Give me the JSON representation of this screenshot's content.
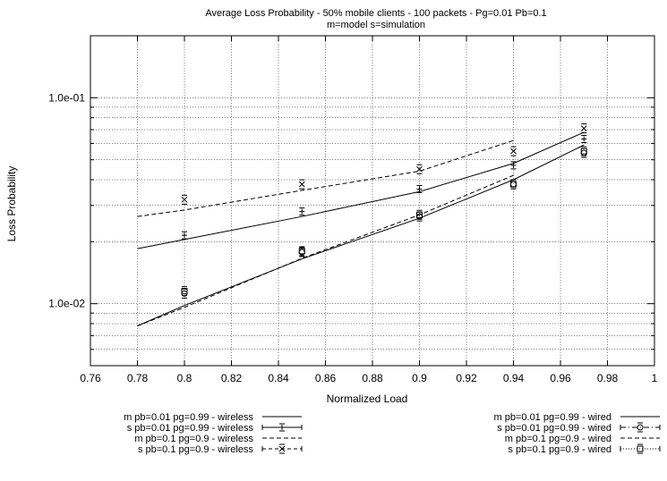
{
  "chart_data": {
    "type": "line",
    "title": "Average Loss Probability - 50% mobile clients - 100 packets - Pg=0.01 Pb=0.1",
    "subtitle": "m=model s=simulation",
    "xlabel": "Normalized Load",
    "ylabel": "Loss Probability",
    "xlim": [
      0.76,
      1.0
    ],
    "ylim": [
      0.005,
      0.2
    ],
    "yscale": "log",
    "grid": true,
    "legend_position": "bottom",
    "x_ticks": [
      "0.76",
      "0.78",
      "0.8",
      "0.82",
      "0.84",
      "0.86",
      "0.88",
      "0.9",
      "0.92",
      "0.94",
      "0.96",
      "0.98",
      "1"
    ],
    "y_tick_labels": [
      {
        "value": 0.1,
        "label": "1.0e-01"
      },
      {
        "value": 0.01,
        "label": "1.0e-02"
      }
    ],
    "series": [
      {
        "name": "m pb=0.01 pg=0.99 - wireless",
        "style": "solid",
        "x": [
          0.78,
          0.8,
          0.85,
          0.9,
          0.94,
          0.97
        ],
        "y": [
          0.0185,
          0.0205,
          0.0265,
          0.035,
          0.048,
          0.068
        ]
      },
      {
        "name": "s pb=0.01 pg=0.99 - wireless",
        "style": "plus-errorbar",
        "x": [
          0.8,
          0.85,
          0.9,
          0.94,
          0.97
        ],
        "y": [
          0.0215,
          0.028,
          0.036,
          0.047,
          0.063
        ]
      },
      {
        "name": "m pb=0.1 pg=0.9 - wireless",
        "style": "dashed",
        "x": [
          0.78,
          0.8,
          0.85,
          0.9,
          0.94
        ],
        "y": [
          0.0265,
          0.0285,
          0.0355,
          0.044,
          0.062
        ]
      },
      {
        "name": "s pb=0.1 pg=0.9 - wireless",
        "style": "x-dashed",
        "x": [
          0.8,
          0.85,
          0.9,
          0.94,
          0.97
        ],
        "y": [
          0.032,
          0.038,
          0.045,
          0.055,
          0.071
        ]
      },
      {
        "name": "m pb=0.01 pg=0.99 - wired",
        "style": "solid",
        "x": [
          0.78,
          0.8,
          0.85,
          0.9,
          0.94,
          0.97
        ],
        "y": [
          0.0078,
          0.0098,
          0.0165,
          0.026,
          0.04,
          0.059
        ]
      },
      {
        "name": "s pb=0.01 pg=0.99 - wired",
        "style": "circle-dashdot",
        "x": [
          0.8,
          0.85,
          0.9,
          0.94,
          0.97
        ],
        "y": [
          0.0112,
          0.0178,
          0.0265,
          0.038,
          0.054
        ]
      },
      {
        "name": "m pb=0.1 pg=0.9 - wired",
        "style": "dashed",
        "x": [
          0.78,
          0.8,
          0.85,
          0.9,
          0.94
        ],
        "y": [
          0.0078,
          0.0096,
          0.0166,
          0.027,
          0.042
        ]
      },
      {
        "name": "s pb=0.1 pg=0.9 - wired",
        "style": "square-dotted",
        "x": [
          0.8,
          0.85,
          0.9,
          0.94,
          0.97
        ],
        "y": [
          0.0115,
          0.018,
          0.027,
          0.038,
          0.055
        ]
      }
    ]
  }
}
